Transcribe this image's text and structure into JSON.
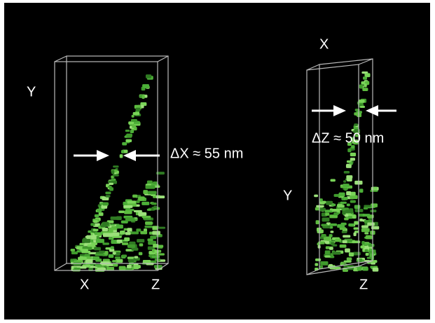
{
  "left_panel": {
    "y_label": "Y",
    "x_label": "X",
    "z_label": "Z",
    "measurement": "ΔX ≈ 55 nm"
  },
  "right_panel": {
    "x_label": "X",
    "y_label": "Y",
    "z_label": "Z",
    "measurement": "ΔZ ≈ 50 nm"
  }
}
